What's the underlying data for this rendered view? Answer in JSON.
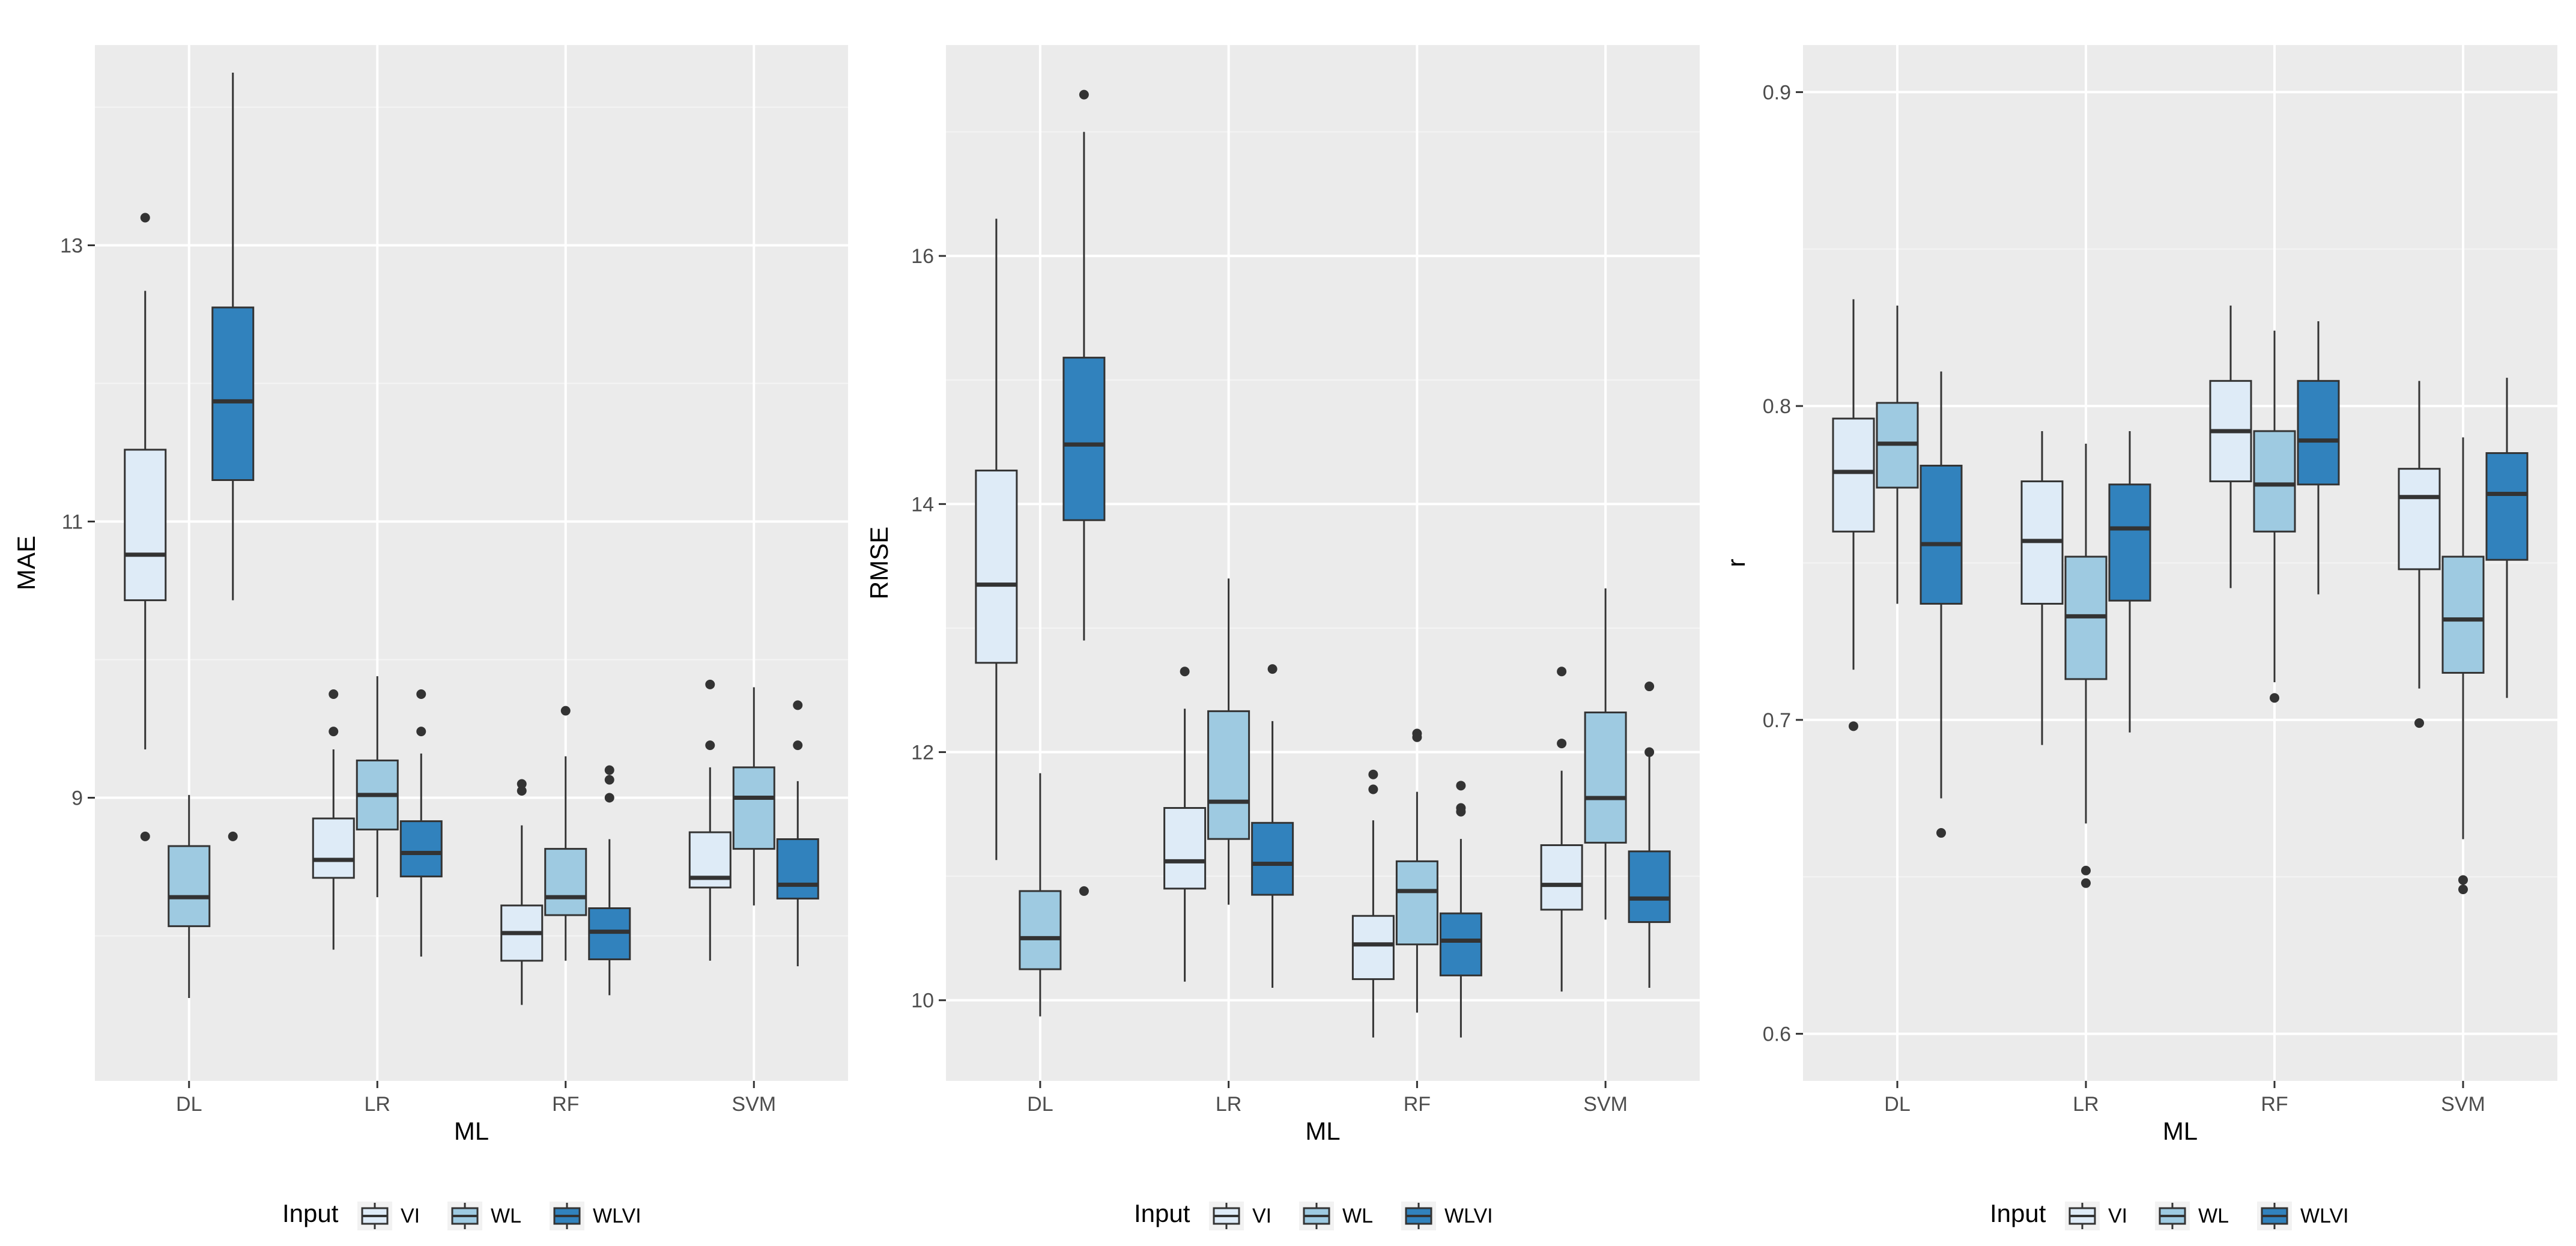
{
  "colors": {
    "panel_bg": "#ebebeb",
    "grid_major": "#ffffff",
    "grid_minor": "#f4f4f4",
    "box_stroke": "#333333",
    "outlier": "#333333",
    "VI": "#deebf7",
    "WL": "#9ecae1",
    "WLVI": "#3182bd"
  },
  "legend": {
    "title": "Input",
    "entries": [
      "VI",
      "WL",
      "WLVI"
    ]
  },
  "chart_data": [
    {
      "type": "boxplot",
      "xlabel": "ML",
      "ylabel": "MAE",
      "categories": [
        "DL",
        "LR",
        "RF",
        "SVM"
      ],
      "groups": [
        "VI",
        "WL",
        "WLVI"
      ],
      "ylim": [
        6.95,
        14.45
      ],
      "yticks": [
        9,
        11,
        13
      ],
      "series": [
        {
          "name": "VI",
          "boxes": [
            {
              "min": 9.35,
              "q1": 10.43,
              "median": 10.76,
              "q3": 11.52,
              "max": 12.67,
              "outliers": [
                13.2,
                8.72
              ]
            },
            {
              "min": 7.9,
              "q1": 8.42,
              "median": 8.55,
              "q3": 8.85,
              "max": 9.35,
              "outliers": [
                9.75,
                9.48
              ]
            },
            {
              "min": 7.5,
              "q1": 7.82,
              "median": 8.02,
              "q3": 8.22,
              "max": 8.8,
              "outliers": [
                9.1,
                9.05
              ]
            },
            {
              "min": 7.82,
              "q1": 8.35,
              "median": 8.42,
              "q3": 8.75,
              "max": 9.22,
              "outliers": [
                9.82,
                9.38
              ]
            }
          ]
        },
        {
          "name": "WL",
          "boxes": [
            {
              "min": 7.55,
              "q1": 8.07,
              "median": 8.28,
              "q3": 8.65,
              "max": 9.02,
              "outliers": []
            },
            {
              "min": 8.28,
              "q1": 8.77,
              "median": 9.02,
              "q3": 9.27,
              "max": 9.88,
              "outliers": []
            },
            {
              "min": 7.82,
              "q1": 8.15,
              "median": 8.28,
              "q3": 8.63,
              "max": 9.3,
              "outliers": [
                9.63
              ]
            },
            {
              "min": 8.22,
              "q1": 8.63,
              "median": 9.0,
              "q3": 9.22,
              "max": 9.8,
              "outliers": []
            }
          ]
        },
        {
          "name": "WLVI",
          "boxes": [
            {
              "min": 10.43,
              "q1": 11.3,
              "median": 11.87,
              "q3": 12.55,
              "max": 14.25,
              "outliers": [
                8.72
              ]
            },
            {
              "min": 7.85,
              "q1": 8.43,
              "median": 8.6,
              "q3": 8.83,
              "max": 9.32,
              "outliers": [
                9.75,
                9.48
              ]
            },
            {
              "min": 7.57,
              "q1": 7.83,
              "median": 8.03,
              "q3": 8.2,
              "max": 8.7,
              "outliers": [
                9.2,
                9.13,
                9.0
              ]
            },
            {
              "min": 7.78,
              "q1": 8.27,
              "median": 8.37,
              "q3": 8.7,
              "max": 9.12,
              "outliers": [
                9.67,
                9.38
              ]
            }
          ]
        }
      ]
    },
    {
      "type": "boxplot",
      "xlabel": "ML",
      "ylabel": "RMSE",
      "categories": [
        "DL",
        "LR",
        "RF",
        "SVM"
      ],
      "groups": [
        "VI",
        "WL",
        "WLVI"
      ],
      "ylim": [
        9.35,
        17.7
      ],
      "yticks": [
        10,
        12,
        14,
        16
      ],
      "series": [
        {
          "name": "VI",
          "boxes": [
            {
              "min": 11.13,
              "q1": 12.72,
              "median": 13.35,
              "q3": 14.27,
              "max": 16.3,
              "outliers": []
            },
            {
              "min": 10.15,
              "q1": 10.9,
              "median": 11.12,
              "q3": 11.55,
              "max": 12.35,
              "outliers": [
                12.65
              ]
            },
            {
              "min": 9.7,
              "q1": 10.17,
              "median": 10.45,
              "q3": 10.68,
              "max": 11.45,
              "outliers": [
                11.82,
                11.7
              ]
            },
            {
              "min": 10.07,
              "q1": 10.73,
              "median": 10.93,
              "q3": 11.25,
              "max": 11.85,
              "outliers": [
                12.65,
                12.07
              ]
            }
          ]
        },
        {
          "name": "WL",
          "boxes": [
            {
              "min": 9.87,
              "q1": 10.25,
              "median": 10.5,
              "q3": 10.88,
              "max": 11.83,
              "outliers": []
            },
            {
              "min": 10.77,
              "q1": 11.3,
              "median": 11.6,
              "q3": 12.33,
              "max": 13.4,
              "outliers": []
            },
            {
              "min": 9.9,
              "q1": 10.45,
              "median": 10.88,
              "q3": 11.12,
              "max": 11.68,
              "outliers": [
                12.15,
                12.12
              ]
            },
            {
              "min": 10.65,
              "q1": 11.27,
              "median": 11.63,
              "q3": 12.32,
              "max": 13.32,
              "outliers": []
            }
          ]
        },
        {
          "name": "WLVI",
          "boxes": [
            {
              "min": 12.9,
              "q1": 13.87,
              "median": 14.48,
              "q3": 15.18,
              "max": 17.0,
              "outliers": [
                17.3,
                10.88
              ]
            },
            {
              "min": 10.1,
              "q1": 10.85,
              "median": 11.1,
              "q3": 11.43,
              "max": 12.25,
              "outliers": [
                12.67
              ]
            },
            {
              "min": 9.7,
              "q1": 10.2,
              "median": 10.48,
              "q3": 10.7,
              "max": 11.3,
              "outliers": [
                11.73,
                11.55,
                11.52
              ]
            },
            {
              "min": 10.1,
              "q1": 10.63,
              "median": 10.82,
              "q3": 11.2,
              "max": 12.0,
              "outliers": [
                12.53,
                12.0
              ]
            }
          ]
        }
      ]
    },
    {
      "type": "boxplot",
      "xlabel": "ML",
      "ylabel": "r",
      "categories": [
        "DL",
        "LR",
        "RF",
        "SVM"
      ],
      "groups": [
        "VI",
        "WL",
        "WLVI"
      ],
      "ylim": [
        0.585,
        0.915
      ],
      "yticks": [
        0.6,
        0.7,
        0.8,
        0.9
      ],
      "series": [
        {
          "name": "VI",
          "boxes": [
            {
              "min": 0.716,
              "q1": 0.76,
              "median": 0.779,
              "q3": 0.796,
              "max": 0.834,
              "outliers": [
                0.698
              ]
            },
            {
              "min": 0.692,
              "q1": 0.737,
              "median": 0.757,
              "q3": 0.776,
              "max": 0.792,
              "outliers": []
            },
            {
              "min": 0.742,
              "q1": 0.776,
              "median": 0.792,
              "q3": 0.808,
              "max": 0.832,
              "outliers": []
            },
            {
              "min": 0.71,
              "q1": 0.748,
              "median": 0.771,
              "q3": 0.78,
              "max": 0.808,
              "outliers": [
                0.699
              ]
            }
          ]
        },
        {
          "name": "WL",
          "boxes": [
            {
              "min": 0.737,
              "q1": 0.774,
              "median": 0.788,
              "q3": 0.801,
              "max": 0.832,
              "outliers": []
            },
            {
              "min": 0.667,
              "q1": 0.713,
              "median": 0.733,
              "q3": 0.752,
              "max": 0.788,
              "outliers": [
                0.652,
                0.648
              ]
            },
            {
              "min": 0.712,
              "q1": 0.76,
              "median": 0.775,
              "q3": 0.792,
              "max": 0.824,
              "outliers": [
                0.707
              ]
            },
            {
              "min": 0.662,
              "q1": 0.715,
              "median": 0.732,
              "q3": 0.752,
              "max": 0.79,
              "outliers": [
                0.649,
                0.646
              ]
            }
          ]
        },
        {
          "name": "WLVI",
          "boxes": [
            {
              "min": 0.675,
              "q1": 0.737,
              "median": 0.756,
              "q3": 0.781,
              "max": 0.811,
              "outliers": [
                0.664
              ]
            },
            {
              "min": 0.696,
              "q1": 0.738,
              "median": 0.761,
              "q3": 0.775,
              "max": 0.792,
              "outliers": []
            },
            {
              "min": 0.74,
              "q1": 0.775,
              "median": 0.789,
              "q3": 0.808,
              "max": 0.827,
              "outliers": []
            },
            {
              "min": 0.707,
              "q1": 0.751,
              "median": 0.772,
              "q3": 0.785,
              "max": 0.809,
              "outliers": []
            }
          ]
        }
      ]
    }
  ]
}
